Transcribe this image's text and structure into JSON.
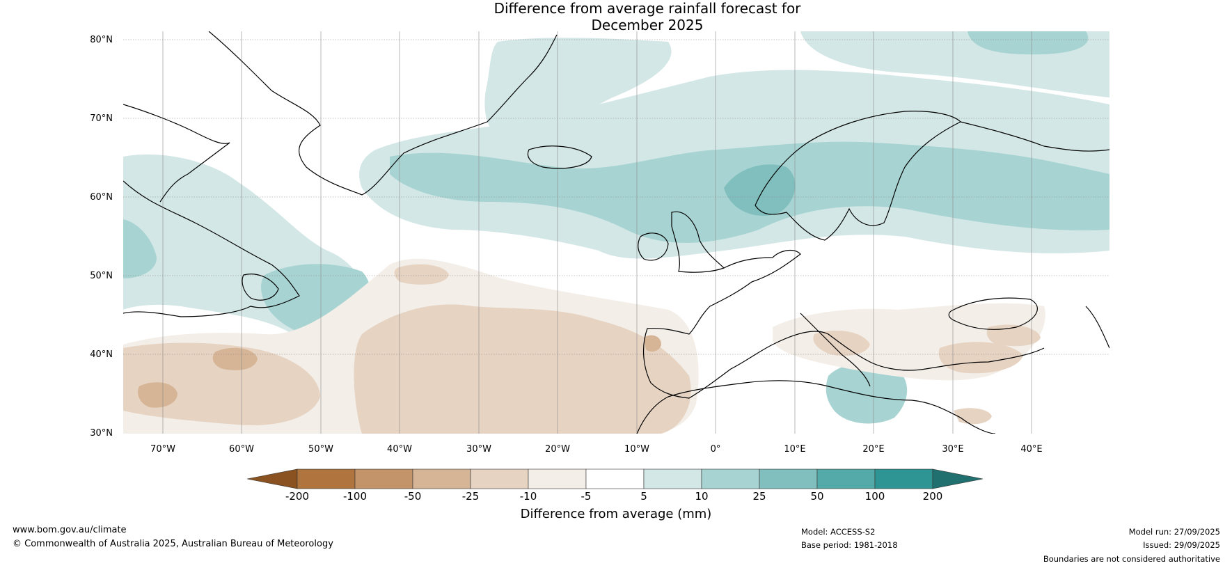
{
  "title": {
    "line1": "Difference from average rainfall forecast for",
    "line2": "December 2025"
  },
  "map": {
    "lat_labels": [
      "80°N",
      "70°N",
      "60°N",
      "50°N",
      "40°N",
      "30°N"
    ],
    "lon_labels": [
      "70°W",
      "60°W",
      "50°W",
      "40°W",
      "30°W",
      "20°W",
      "10°W",
      "0°",
      "10°E",
      "20°E",
      "30°E",
      "40°E"
    ]
  },
  "colorbar": {
    "label": "Difference from average (mm)",
    "tick_labels": [
      "-200",
      "-100",
      "-50",
      "-25",
      "-10",
      "-5",
      "5",
      "10",
      "25",
      "50",
      "100",
      "200"
    ],
    "colors": [
      "#8a5220",
      "#b0743f",
      "#c3946a",
      "#d6b596",
      "#e6d3c2",
      "#f3eee8",
      "#ffffff",
      "#d3e7e6",
      "#a7d4d2",
      "#80bfbd",
      "#54aaa9",
      "#2f9594",
      "#20706f"
    ]
  },
  "colors": {
    "land_line": "#000000",
    "border_line": "#808080",
    "grid": "#888888",
    "dry1": "#f3eee8",
    "dry2": "#e6d3c2",
    "dry3": "#d6b596",
    "wet1": "#d3e7e6",
    "wet2": "#a7d4d2",
    "wet3": "#80bfbd",
    "wet4": "#54aaa9"
  },
  "footer": {
    "website": "www.bom.gov.au/climate",
    "copyright": "© Commonwealth of Australia 2025, Australian Bureau of Meteorology",
    "model": "Model: ACCESS-S2",
    "base_period": "Base period: 1981-2018",
    "model_run": "Model run: 27/09/2025",
    "issued": "Issued: 29/09/2025",
    "disclaimer": "Boundaries are not considered authoritative"
  }
}
